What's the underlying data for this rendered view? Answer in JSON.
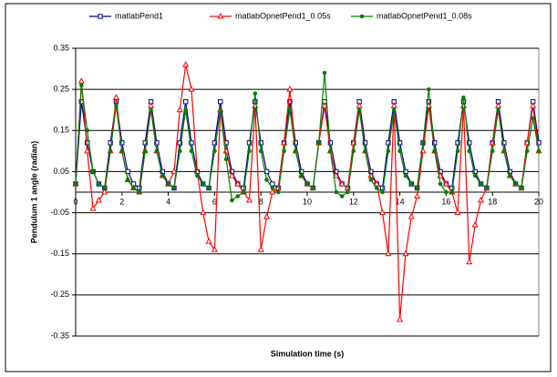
{
  "chart_data": {
    "type": "line",
    "x_label": "Simulation time (s)",
    "y_label": "Pendulum 1 angle (radian)",
    "legend": "top",
    "grid": true,
    "x": [
      0,
      0.25,
      0.5,
      0.75,
      1,
      1.25,
      1.5,
      1.75,
      2,
      2.25,
      2.5,
      2.75,
      3,
      3.25,
      3.5,
      3.75,
      4,
      4.25,
      4.5,
      4.75,
      5,
      5.25,
      5.5,
      5.75,
      6,
      6.25,
      6.5,
      6.75,
      7,
      7.25,
      7.5,
      7.75,
      8,
      8.25,
      8.5,
      8.75,
      9,
      9.25,
      9.5,
      9.75,
      10,
      10.25,
      10.5,
      10.75,
      11,
      11.25,
      11.5,
      11.75,
      12,
      12.25,
      12.5,
      12.75,
      13,
      13.25,
      13.5,
      13.75,
      14,
      14.25,
      14.5,
      14.75,
      15,
      15.25,
      15.5,
      15.75,
      16,
      16.25,
      16.5,
      16.75,
      17,
      17.25,
      17.5,
      17.75,
      18,
      18.25,
      18.5,
      18.75,
      19,
      19.25,
      19.5,
      19.75,
      20
    ],
    "series": [
      {
        "name": "matlabPend1",
        "color": "#00008b",
        "marker": "square",
        "values": [
          0.02,
          0.22,
          0.12,
          0.05,
          0.02,
          0.01,
          0.12,
          0.22,
          0.12,
          0.05,
          0.02,
          0.01,
          0.12,
          0.22,
          0.12,
          0.05,
          0.02,
          0.01,
          0.12,
          0.22,
          0.12,
          0.05,
          0.02,
          0.01,
          0.12,
          0.22,
          0.12,
          0.05,
          0.02,
          0.01,
          0.12,
          0.22,
          0.12,
          0.05,
          0.02,
          0.01,
          0.12,
          0.22,
          0.12,
          0.05,
          0.02,
          0.01,
          0.12,
          0.22,
          0.12,
          0.05,
          0.02,
          0.01,
          0.12,
          0.22,
          0.12,
          0.05,
          0.02,
          0.01,
          0.12,
          0.22,
          0.12,
          0.05,
          0.02,
          0.01,
          0.12,
          0.22,
          0.12,
          0.05,
          0.02,
          0.01,
          0.12,
          0.22,
          0.12,
          0.05,
          0.02,
          0.01,
          0.12,
          0.22,
          0.12,
          0.05,
          0.02,
          0.01,
          0.12,
          0.22,
          0.12
        ]
      },
      {
        "name": "matlabOpnetPend1_0.05s",
        "color": "#ff0000",
        "marker": "triangle",
        "values": [
          0.02,
          0.27,
          0.1,
          -0.04,
          -0.02,
          0,
          0.1,
          0.23,
          0.1,
          0.03,
          0.01,
          0,
          0.1,
          0.21,
          0.1,
          0.04,
          0.02,
          0.05,
          0.2,
          0.31,
          0.25,
          0.05,
          -0.05,
          -0.12,
          -0.14,
          0.2,
          0.1,
          0.04,
          0.02,
          0,
          -0.02,
          0.21,
          -0.14,
          -0.06,
          0,
          0.01,
          0.12,
          0.25,
          0.1,
          0.04,
          0.02,
          0.01,
          0.12,
          0.21,
          0.1,
          0.04,
          0.02,
          0.01,
          0.12,
          0.21,
          0.1,
          0.04,
          0.02,
          -0.05,
          -0.15,
          0.21,
          -0.31,
          -0.15,
          -0.06,
          -0.01,
          0.1,
          0.21,
          0.1,
          0.04,
          0.02,
          0,
          -0.05,
          0.21,
          -0.17,
          -0.08,
          -0.02,
          0.01,
          0.12,
          0.21,
          0.1,
          0.04,
          0.02,
          0.01,
          0.12,
          0.21,
          0.1
        ]
      },
      {
        "name": "matlabOpnetPend1_0.08s",
        "color": "#008000",
        "marker": "circle",
        "values": [
          0.02,
          0.26,
          0.15,
          0.05,
          0.02,
          0.01,
          0.1,
          0.21,
          0.1,
          0.03,
          0.01,
          0,
          0.1,
          0.2,
          0.1,
          0.04,
          0.02,
          0.01,
          0.1,
          0.2,
          0.1,
          0.04,
          0.02,
          0.01,
          0.1,
          0.2,
          0.08,
          -0.02,
          -0.01,
          0,
          0.1,
          0.24,
          0.1,
          0.03,
          0.01,
          0,
          0.1,
          0.2,
          0.1,
          0.04,
          0.02,
          0.01,
          0.12,
          0.29,
          0.1,
          0,
          -0.01,
          0,
          0.1,
          0.2,
          0.1,
          0.03,
          0.01,
          0,
          0.1,
          0.2,
          0.1,
          0.04,
          0.02,
          0.01,
          0.12,
          0.25,
          0.1,
          0.02,
          0,
          0,
          0.1,
          0.23,
          0.1,
          0.04,
          0.02,
          0.01,
          0.1,
          0.2,
          0.1,
          0.04,
          0.02,
          0.01,
          0.1,
          0.18,
          0.1
        ]
      }
    ],
    "xlim": [
      0,
      20
    ],
    "xticks": [
      0,
      2,
      4,
      6,
      8,
      10,
      12,
      14,
      16,
      18,
      20
    ],
    "ylim": [
      -0.35,
      0.35
    ],
    "yticks": [
      -0.35,
      -0.25,
      -0.15,
      -0.05,
      0.05,
      0.15,
      0.25,
      0.35
    ]
  }
}
